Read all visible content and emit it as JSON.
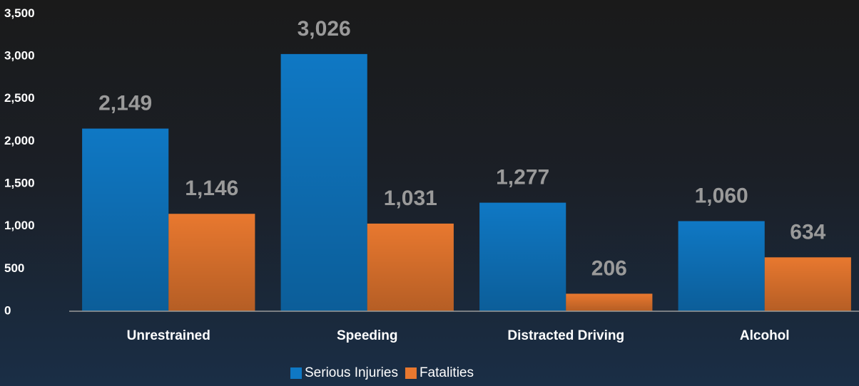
{
  "chart_data": {
    "type": "bar",
    "categories": [
      "Unrestrained",
      "Speeding",
      "Distracted Driving",
      "Alcohol"
    ],
    "series": [
      {
        "name": "Serious Injuries",
        "color": "#0f78c4",
        "values": [
          2149,
          3026,
          1277,
          1060
        ],
        "value_labels": [
          "2,149",
          "3,026",
          "1,277",
          "1,060"
        ]
      },
      {
        "name": "Fatalities",
        "color": "#e8782f",
        "values": [
          1146,
          1031,
          206,
          634
        ],
        "value_labels": [
          "1,146",
          "1,031",
          "206",
          "634"
        ]
      }
    ],
    "ylim": [
      0,
      3500
    ],
    "yticks": [
      0,
      500,
      {
        "value": 1000,
        "label": "1,000"
      },
      {
        "value": 1500,
        "label": "1,500"
      },
      {
        "value": 2000,
        "label": "2,000"
      },
      {
        "value": 2500,
        "label": "2,500"
      },
      {
        "value": 3000,
        "label": "3,000"
      },
      {
        "value": 3500,
        "label": "3,500"
      }
    ],
    "grid": false,
    "legend": "bottom"
  }
}
